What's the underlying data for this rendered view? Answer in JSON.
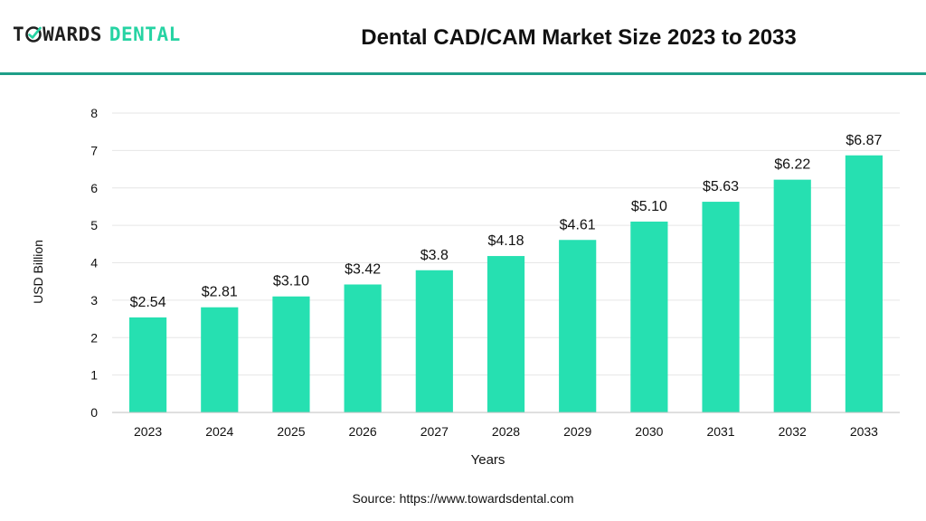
{
  "header": {
    "logo_part1": "T",
    "logo_part2": "WARDS",
    "logo_part3": "DENTAL",
    "title": "Dental CAD/CAM Market Size 2023 to 2033"
  },
  "source": "Source: https://www.towardsdental.com",
  "colors": {
    "bar": "#26e0b1",
    "accent": "#1f9e88",
    "logo_green": "#26d3a3"
  },
  "chart_data": {
    "type": "bar",
    "title": "Dental CAD/CAM Market Size 2023 to 2033",
    "xlabel": "Years",
    "ylabel": "USD Billion",
    "ylim": [
      0,
      8
    ],
    "yticks": [
      0,
      1,
      2,
      3,
      4,
      5,
      6,
      7,
      8
    ],
    "grid": true,
    "categories": [
      "2023",
      "2024",
      "2025",
      "2026",
      "2027",
      "2028",
      "2029",
      "2030",
      "2031",
      "2032",
      "2033"
    ],
    "values": [
      2.54,
      2.81,
      3.1,
      3.42,
      3.8,
      4.18,
      4.61,
      5.1,
      5.63,
      6.22,
      6.87
    ],
    "data_labels": [
      "$2.54",
      "$2.81",
      "$3.10",
      "$3.42",
      "$3.8",
      "$4.18",
      "$4.61",
      "$5.10",
      "$5.63",
      "$6.22",
      "$6.87"
    ]
  }
}
